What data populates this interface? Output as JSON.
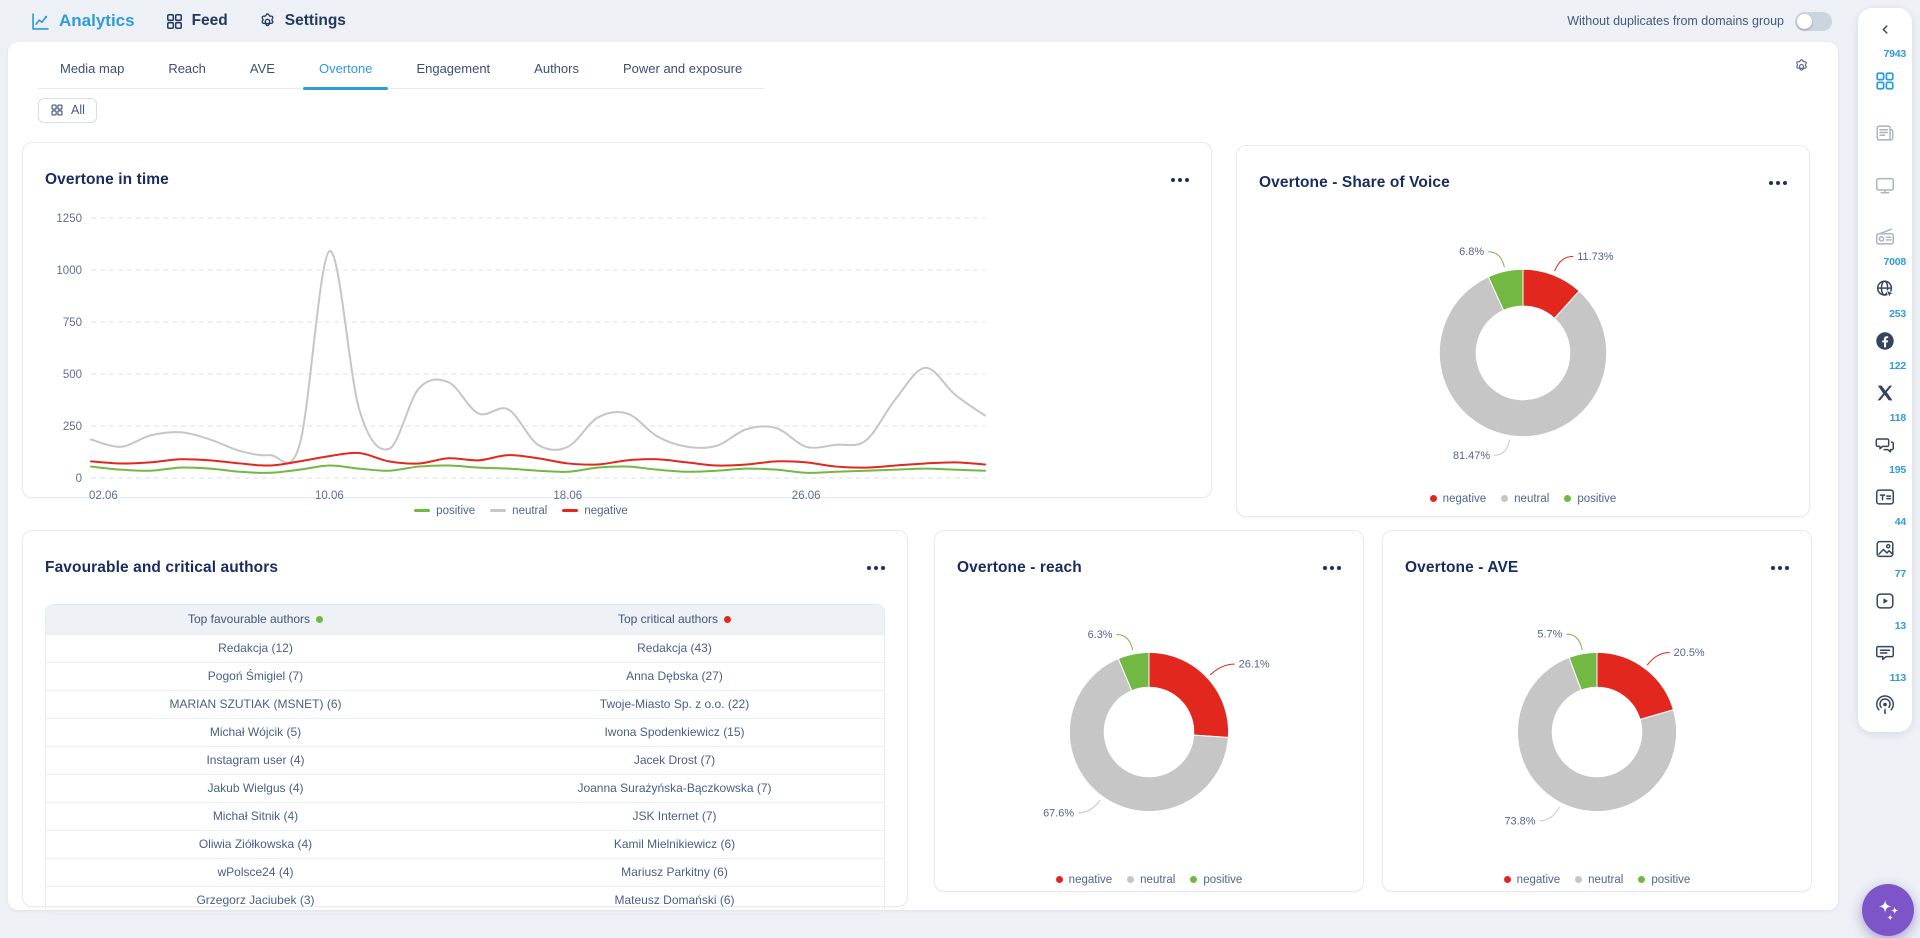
{
  "colors": {
    "accent": "#2d9cdb",
    "navy": "#192c5f",
    "muted_text": "#52658c",
    "negative": "#e2271f",
    "neutral": "#c6c6c6",
    "positive": "#73b842",
    "fab_purple": "#7d55c8"
  },
  "top_nav": {
    "brand": "Analytics",
    "feed": "Feed",
    "settings": "Settings",
    "duplicates_toggle": {
      "label": "Without duplicates from domains group",
      "state": "off"
    }
  },
  "tabs": {
    "items": [
      "Media map",
      "Reach",
      "AVE",
      "Overtone",
      "Engagement",
      "Authors",
      "Power and exposure"
    ],
    "active": "Overtone"
  },
  "filters": {
    "all_label": "All"
  },
  "sidebar": {
    "items": [
      {
        "name": "all",
        "count": "7943",
        "active": true
      },
      {
        "name": "press",
        "count": ""
      },
      {
        "name": "tv",
        "count": ""
      },
      {
        "name": "radio",
        "count": ""
      },
      {
        "name": "internet",
        "count": "7008"
      },
      {
        "name": "facebook",
        "count": "253"
      },
      {
        "name": "x",
        "count": "122"
      },
      {
        "name": "forum",
        "count": "118"
      },
      {
        "name": "blog",
        "count": "195"
      },
      {
        "name": "photo",
        "count": "44"
      },
      {
        "name": "video",
        "count": "77"
      },
      {
        "name": "review",
        "count": "13"
      },
      {
        "name": "podcast",
        "count": "113"
      }
    ]
  },
  "chart_data": [
    {
      "type": "line",
      "title": "Overtone in time",
      "x_range": [
        "02.06",
        "02.07"
      ],
      "x_tick_labels": [
        "02.06",
        "10.06",
        "18.06",
        "26.06"
      ],
      "x_tick_indices": [
        0,
        8,
        16,
        24
      ],
      "ylim": [
        0,
        1250
      ],
      "yticks": [
        0,
        250,
        500,
        750,
        1000,
        1250
      ],
      "grid": "dashed-horizontal",
      "legend_position": "bottom",
      "series": [
        {
          "name": "positive",
          "color": "#73b842",
          "values": [
            55,
            40,
            35,
            50,
            45,
            30,
            25,
            40,
            60,
            45,
            35,
            55,
            60,
            50,
            45,
            35,
            30,
            50,
            55,
            40,
            30,
            35,
            45,
            40,
            25,
            30,
            35,
            40,
            45,
            40,
            35
          ]
        },
        {
          "name": "neutral",
          "color": "#c6c6c6",
          "values": [
            185,
            150,
            205,
            220,
            185,
            130,
            110,
            160,
            1090,
            330,
            140,
            430,
            460,
            310,
            330,
            160,
            150,
            290,
            310,
            200,
            150,
            155,
            235,
            240,
            150,
            160,
            180,
            380,
            530,
            400,
            300
          ]
        },
        {
          "name": "negative",
          "color": "#e2271f",
          "values": [
            80,
            70,
            75,
            90,
            85,
            70,
            60,
            80,
            105,
            120,
            80,
            70,
            95,
            85,
            110,
            95,
            70,
            65,
            85,
            90,
            75,
            60,
            65,
            80,
            75,
            55,
            50,
            60,
            70,
            75,
            65
          ]
        }
      ]
    },
    {
      "type": "pie",
      "title": "Overtone - Share of Voice",
      "legend_position": "bottom",
      "slices": [
        {
          "name": "negative",
          "value": 11.73,
          "label": "11.73%",
          "color": "#e2271f"
        },
        {
          "name": "neutral",
          "value": 81.47,
          "label": "81.47%",
          "color": "#c6c6c6"
        },
        {
          "name": "positive",
          "value": 6.8,
          "label": "6.8%",
          "color": "#73b842"
        }
      ]
    },
    {
      "type": "table",
      "title": "Favourable and critical authors",
      "columns": [
        {
          "header": "Top favourable authors",
          "dot_color": "#73b842",
          "rows": [
            "Redakcja (12)",
            "Pogoń Śmigiel (7)",
            "MARIAN SZUTIAK (MSNET) (6)",
            "Michał Wójcik (5)",
            "Instagram user (4)",
            "Jakub Wielgus (4)",
            "Michał Sitnik (4)",
            "Oliwia Ziółkowska (4)",
            "wPolsce24 (4)",
            "Grzegorz Jaciubek (3)"
          ]
        },
        {
          "header": "Top critical authors",
          "dot_color": "#e2271f",
          "rows": [
            "Redakcja (43)",
            "Anna Dębska (27)",
            "Twoje-Miasto Sp. z o.o. (22)",
            "Iwona Spodenkiewicz (15)",
            "Jacek Drost (7)",
            "Joanna Surażyńska-Bączkowska (7)",
            "JSK Internet (7)",
            "Kamil Mielnikiewicz (6)",
            "Mariusz Parkitny (6)",
            "Mateusz Domański (6)"
          ]
        }
      ]
    },
    {
      "type": "pie",
      "title": "Overtone - reach",
      "legend_position": "bottom",
      "slices": [
        {
          "name": "negative",
          "value": 26.1,
          "label": "26.1%",
          "color": "#e2271f"
        },
        {
          "name": "neutral",
          "value": 67.6,
          "label": "67.6%",
          "color": "#c6c6c6"
        },
        {
          "name": "positive",
          "value": 6.3,
          "label": "6.3%",
          "color": "#73b842"
        }
      ]
    },
    {
      "type": "pie",
      "title": "Overtone - AVE",
      "legend_position": "bottom",
      "slices": [
        {
          "name": "negative",
          "value": 20.5,
          "label": "20.5%",
          "color": "#e2271f"
        },
        {
          "name": "neutral",
          "value": 73.8,
          "label": "73.8%",
          "color": "#c6c6c6"
        },
        {
          "name": "positive",
          "value": 5.7,
          "label": "5.7%",
          "color": "#73b842"
        }
      ]
    }
  ]
}
